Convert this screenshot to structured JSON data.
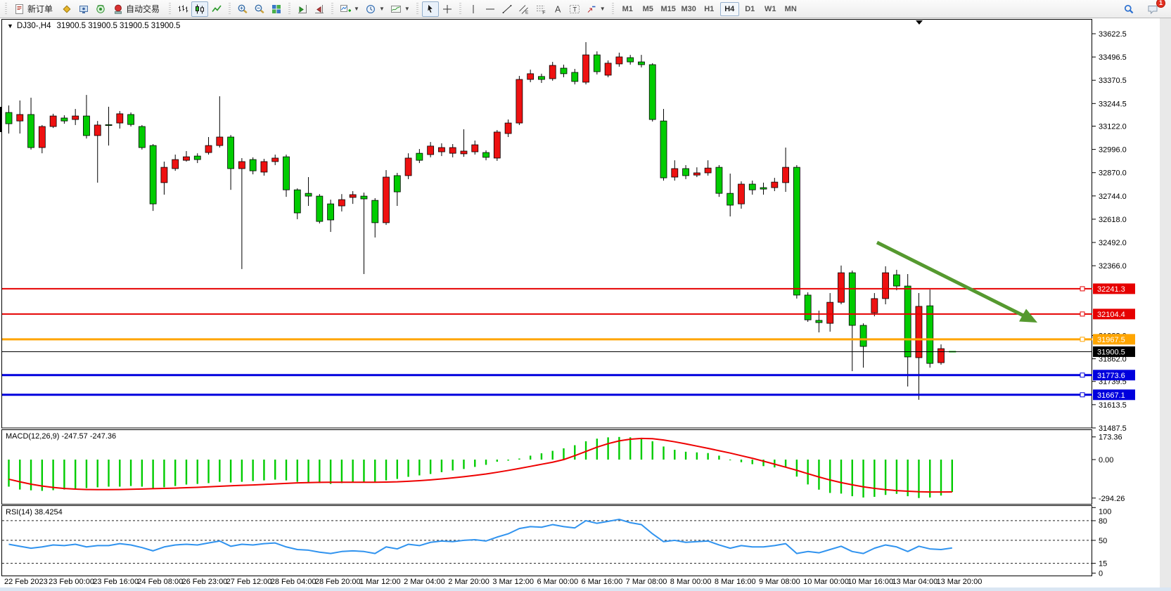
{
  "toolbar": {
    "new_order_label": "新订单",
    "auto_trading_label": "自动交易",
    "notification_count": "1",
    "timeframes": [
      "M1",
      "M5",
      "M15",
      "M30",
      "H1",
      "H4",
      "D1",
      "W1",
      "MN"
    ],
    "active_timeframe": "H4",
    "groups": [
      {
        "items": [
          {
            "name": "new-order-button",
            "icon": "new-order",
            "label_bind": "new_order_label"
          },
          {
            "name": "market-watch-button",
            "icon": "gold-diamond"
          },
          {
            "name": "data-window-button",
            "icon": "monitor"
          },
          {
            "name": "navigator-button",
            "icon": "signal"
          },
          {
            "name": "auto-trading-button",
            "icon": "auto-trading",
            "label_bind": "auto_trading_label"
          }
        ]
      },
      {
        "items": [
          {
            "name": "bar-chart-button",
            "icon": "bars"
          },
          {
            "name": "candlestick-chart-button",
            "icon": "candles",
            "active": true
          },
          {
            "name": "line-chart-button",
            "icon": "linechart"
          }
        ]
      },
      {
        "items": [
          {
            "name": "zoom-in-button",
            "icon": "zoom-in"
          },
          {
            "name": "zoom-out-button",
            "icon": "zoom-out"
          },
          {
            "name": "tile-windows-button",
            "icon": "tile"
          }
        ]
      },
      {
        "items": [
          {
            "name": "auto-scroll-button",
            "icon": "autoscroll"
          },
          {
            "name": "chart-shift-button",
            "icon": "chartshift"
          }
        ]
      },
      {
        "items": [
          {
            "name": "indicators-button",
            "icon": "indicator-add",
            "dropdown": true
          },
          {
            "name": "periods-button",
            "icon": "clock",
            "dropdown": true
          },
          {
            "name": "templates-button",
            "icon": "template",
            "dropdown": true
          }
        ]
      },
      {
        "items": [
          {
            "name": "cursor-button",
            "icon": "cursor",
            "active": true
          },
          {
            "name": "crosshair-button",
            "icon": "crosshair"
          }
        ]
      },
      {
        "items": [
          {
            "name": "vertical-line-button",
            "icon": "vline"
          },
          {
            "name": "horizontal-line-button",
            "icon": "hline"
          },
          {
            "name": "trendline-button",
            "icon": "trendline"
          },
          {
            "name": "equidistant-channel-button",
            "icon": "channel"
          },
          {
            "name": "fibonacci-button",
            "icon": "fibo"
          },
          {
            "name": "text-button",
            "icon": "textA"
          },
          {
            "name": "text-label-button",
            "icon": "labelT"
          },
          {
            "name": "arrows-button",
            "icon": "arrows",
            "dropdown": true
          }
        ]
      }
    ]
  },
  "chart": {
    "dropdown_glyph": "▼",
    "title": "DJ30-,H4",
    "ohlc": "31900.5 31900.5 31900.5 31900.5"
  },
  "price_axis": {
    "ticks": [
      "33622.5",
      "33496.5",
      "33370.5",
      "33244.5",
      "33122.0",
      "32996.0",
      "32870.0",
      "32744.0",
      "32618.0",
      "32492.0",
      "32366.0",
      "31988.0",
      "31862.0",
      "31739.5",
      "31613.5",
      "31487.5"
    ]
  },
  "hlines": [
    {
      "name": "resistance-line-1",
      "price": "32241.3",
      "value": 32241.3,
      "color": "#e60000",
      "thickness": 2
    },
    {
      "name": "resistance-line-2",
      "price": "32104.4",
      "value": 32104.4,
      "color": "#e60000",
      "thickness": 2
    },
    {
      "name": "support-line-orange",
      "price": "31967.5",
      "value": 31967.5,
      "color": "#ffa500",
      "thickness": 3
    },
    {
      "name": "current-price-line",
      "price": "31900.5",
      "value": 31900.5,
      "color": "#000000",
      "thickness": 1,
      "is_price": true
    },
    {
      "name": "support-line-blue-1",
      "price": "31773.6",
      "value": 31773.6,
      "color": "#0000dd",
      "thickness": 3
    },
    {
      "name": "support-line-blue-2",
      "price": "31667.1",
      "value": 31667.1,
      "color": "#0000dd",
      "thickness": 3
    }
  ],
  "annotation_arrow": {
    "name": "downtrend-arrow",
    "color": "#55992f",
    "from": [
      1247,
      319
    ],
    "to": [
      1455,
      423
    ],
    "tip": [
      1475,
      433
    ],
    "wing1": [
      1449,
      431.5
    ],
    "wing2": [
      1459,
      413.5
    ]
  },
  "time_axis": {
    "labels": [
      "22 Feb 2023",
      "23 Feb 00:00",
      "23 Feb 16:00",
      "24 Feb 08:00",
      "26 Feb 23:00",
      "27 Feb 12:00",
      "28 Feb 04:00",
      "28 Feb 20:00",
      "1 Mar 12:00",
      "2 Mar 04:00",
      "2 Mar 20:00",
      "3 Mar 12:00",
      "6 Mar 00:00",
      "6 Mar 16:00",
      "7 Mar 08:00",
      "8 Mar 00:00",
      "8 Mar 16:00",
      "9 Mar 08:00",
      "10 Mar 00:00",
      "10 Mar 16:00",
      "13 Mar 04:00",
      "13 Mar 20:00"
    ]
  },
  "indicators": {
    "macd": {
      "label": "MACD(12,26,9)",
      "values_label": "-247.57 -247.36",
      "axis": [
        "173.36",
        "0.00",
        "-294.26"
      ]
    },
    "rsi": {
      "label": "RSI(14)",
      "value_label": "38.4254",
      "axis": [
        100,
        80,
        50,
        15,
        0
      ],
      "level_lines": [
        80,
        50,
        15
      ]
    }
  },
  "chart_data": [
    {
      "type": "candlestick",
      "title": "DJ30-,H4",
      "timeframe": "H4",
      "bull_color": "#ee1111",
      "bear_color": "#00cc00",
      "ylim": [
        31450,
        33680
      ],
      "candles": [
        [
          33196,
          33234,
          33082,
          33135
        ],
        [
          33150,
          33261,
          33082,
          33185
        ],
        [
          33185,
          33276,
          32995,
          33006
        ],
        [
          33006,
          33128,
          32975,
          33120
        ],
        [
          33120,
          33189,
          33112,
          33177
        ],
        [
          33166,
          33181,
          33135,
          33150
        ],
        [
          33158,
          33215,
          33128,
          33177
        ],
        [
          33177,
          33291,
          33055,
          33071
        ],
        [
          33071,
          33150,
          32816,
          33128
        ],
        [
          33130,
          33227,
          33017,
          33128
        ],
        [
          33139,
          33204,
          33109,
          33189
        ],
        [
          33185,
          33196,
          33120,
          33131
        ],
        [
          33120,
          33128,
          32995,
          33006
        ],
        [
          33017,
          33025,
          32663,
          32701
        ],
        [
          32816,
          32930,
          32751,
          32899
        ],
        [
          32892,
          32968,
          32880,
          32941
        ],
        [
          32937,
          32987,
          32930,
          32956
        ],
        [
          32960,
          32975,
          32922,
          32941
        ],
        [
          32979,
          33063,
          32968,
          33017
        ],
        [
          33017,
          33284,
          33006,
          33063
        ],
        [
          33063,
          33074,
          32777,
          32892
        ],
        [
          32892,
          32949,
          32348,
          32930
        ],
        [
          32941,
          32953,
          32861,
          32880
        ],
        [
          32873,
          32945,
          32854,
          32930
        ],
        [
          32930,
          32968,
          32911,
          32949
        ],
        [
          32956,
          32968,
          32739,
          32777
        ],
        [
          32777,
          32785,
          32618,
          32652
        ],
        [
          32758,
          32846,
          32690,
          32743
        ],
        [
          32743,
          32754,
          32595,
          32606
        ],
        [
          32701,
          32724,
          32549,
          32614
        ],
        [
          32690,
          32754,
          32660,
          32724
        ],
        [
          32736,
          32770,
          32701,
          32751
        ],
        [
          32743,
          32762,
          32321,
          32728
        ],
        [
          32720,
          32732,
          32519,
          32599
        ],
        [
          32599,
          32884,
          32587,
          32846
        ],
        [
          32854,
          32869,
          32690,
          32766
        ],
        [
          32854,
          32975,
          32835,
          32949
        ],
        [
          32975,
          32998,
          32922,
          32937
        ],
        [
          32968,
          33036,
          32953,
          33014
        ],
        [
          32983,
          33029,
          32960,
          33006
        ],
        [
          32975,
          33025,
          32953,
          33006
        ],
        [
          32972,
          33105,
          32956,
          32987
        ],
        [
          32983,
          33044,
          32968,
          33021
        ],
        [
          32979,
          32991,
          32937,
          32953
        ],
        [
          32949,
          33101,
          32934,
          33090
        ],
        [
          33082,
          33158,
          33063,
          33139
        ],
        [
          33139,
          33394,
          33128,
          33375
        ],
        [
          33375,
          33428,
          33360,
          33406
        ],
        [
          33391,
          33406,
          33356,
          33375
        ],
        [
          33379,
          33470,
          33368,
          33451
        ],
        [
          33436,
          33455,
          33387,
          33406
        ],
        [
          33413,
          33432,
          33348,
          33364
        ],
        [
          33360,
          33577,
          33348,
          33508
        ],
        [
          33508,
          33527,
          33402,
          33417
        ],
        [
          33398,
          33478,
          33387,
          33463
        ],
        [
          33459,
          33520,
          33444,
          33497
        ],
        [
          33493,
          33508,
          33455,
          33470
        ],
        [
          33470,
          33508,
          33440,
          33455
        ],
        [
          33455,
          33463,
          33147,
          33158
        ],
        [
          33150,
          33215,
          32827,
          32842
        ],
        [
          32846,
          32937,
          32827,
          32892
        ],
        [
          32892,
          32911,
          32835,
          32854
        ],
        [
          32857,
          32899,
          32846,
          32869
        ],
        [
          32869,
          32937,
          32854,
          32895
        ],
        [
          32899,
          32911,
          32739,
          32758
        ],
        [
          32758,
          32865,
          32633,
          32694
        ],
        [
          32701,
          32823,
          32675,
          32808
        ],
        [
          32808,
          32827,
          32751,
          32777
        ],
        [
          32789,
          32816,
          32751,
          32781
        ],
        [
          32789,
          32842,
          32770,
          32819
        ],
        [
          32816,
          33006,
          32766,
          32899
        ],
        [
          32899,
          32911,
          32188,
          32207
        ],
        [
          32207,
          32222,
          32062,
          32073
        ],
        [
          32070,
          32123,
          32005,
          32058
        ],
        [
          32054,
          32218,
          32009,
          32168
        ],
        [
          32168,
          32367,
          32157,
          32328
        ],
        [
          32328,
          32340,
          31795,
          32043
        ],
        [
          32043,
          32054,
          31814,
          31929
        ],
        [
          32111,
          32218,
          32092,
          32188
        ],
        [
          32188,
          32363,
          32157,
          32328
        ],
        [
          32317,
          32344,
          32233,
          32256
        ],
        [
          32256,
          32321,
          31712,
          31872
        ],
        [
          31868,
          32218,
          31640,
          32146
        ],
        [
          32149,
          32237,
          31814,
          31837
        ],
        [
          31841,
          31940,
          31830,
          31917
        ],
        [
          31900.5,
          31900.5,
          31900.5,
          31900.5
        ]
      ]
    },
    {
      "type": "bar",
      "name": "MACD histogram",
      "color": "#00cc00",
      "ylim": [
        -294.26,
        173.36
      ],
      "values": [
        -207,
        -229,
        -235,
        -239,
        -234,
        -229,
        -223,
        -218,
        -212,
        -207,
        -207,
        -202,
        -207,
        -218,
        -212,
        -202,
        -191,
        -186,
        -180,
        -170,
        -175,
        -170,
        -164,
        -159,
        -153,
        -159,
        -170,
        -175,
        -180,
        -186,
        -180,
        -175,
        -170,
        -175,
        -159,
        -148,
        -132,
        -121,
        -110,
        -96,
        -83,
        -72,
        -56,
        -40,
        -16,
        -8,
        8,
        30,
        48,
        67,
        86,
        110,
        140,
        160,
        170,
        173,
        170,
        160,
        140,
        100,
        75,
        60,
        55,
        50,
        30,
        0,
        -20,
        -35,
        -50,
        -60,
        -60,
        -130,
        -190,
        -230,
        -255,
        -260,
        -280,
        -290,
        -285,
        -270,
        -262,
        -280,
        -294,
        -290,
        -275,
        -247.57
      ]
    },
    {
      "type": "line",
      "name": "MACD signal",
      "color": "#ee0000",
      "values": [
        -150,
        -170,
        -188,
        -202,
        -213,
        -221,
        -226,
        -229,
        -230,
        -230,
        -229,
        -227,
        -225,
        -222,
        -220,
        -218,
        -215,
        -212,
        -208,
        -204,
        -200,
        -197,
        -194,
        -190,
        -186,
        -182,
        -178,
        -176,
        -174,
        -173,
        -173,
        -173,
        -173,
        -173,
        -172,
        -170,
        -166,
        -161,
        -155,
        -148,
        -140,
        -131,
        -121,
        -110,
        -97,
        -83,
        -68,
        -52,
        -36,
        -20,
        0,
        30,
        62,
        95,
        122,
        143,
        156,
        162,
        160,
        150,
        136,
        120,
        103,
        86,
        68,
        50,
        30,
        10,
        -12,
        -35,
        -58,
        -82,
        -108,
        -133,
        -156,
        -176,
        -193,
        -208,
        -220,
        -230,
        -237,
        -242,
        -246,
        -248,
        -248,
        -247.36
      ]
    },
    {
      "type": "line",
      "name": "RSI(14)",
      "color": "#3093ef",
      "ylim": [
        0,
        100
      ],
      "values": [
        44,
        41,
        38,
        40,
        43,
        42,
        44,
        40,
        42,
        42,
        45,
        43,
        39,
        34,
        40,
        43,
        44,
        43,
        46,
        49,
        41,
        44,
        43,
        45,
        46,
        40,
        36,
        35,
        32,
        30,
        33,
        34,
        33,
        30,
        40,
        37,
        44,
        42,
        47,
        49,
        48,
        50,
        51,
        49,
        55,
        60,
        68,
        71,
        70,
        74,
        71,
        69,
        80,
        76,
        79,
        82,
        77,
        74,
        60,
        48,
        50,
        47,
        48,
        49,
        43,
        38,
        42,
        40,
        40,
        42,
        45,
        30,
        33,
        31,
        36,
        41,
        33,
        30,
        38,
        43,
        40,
        33,
        41,
        37,
        36,
        38.4
      ]
    }
  ]
}
